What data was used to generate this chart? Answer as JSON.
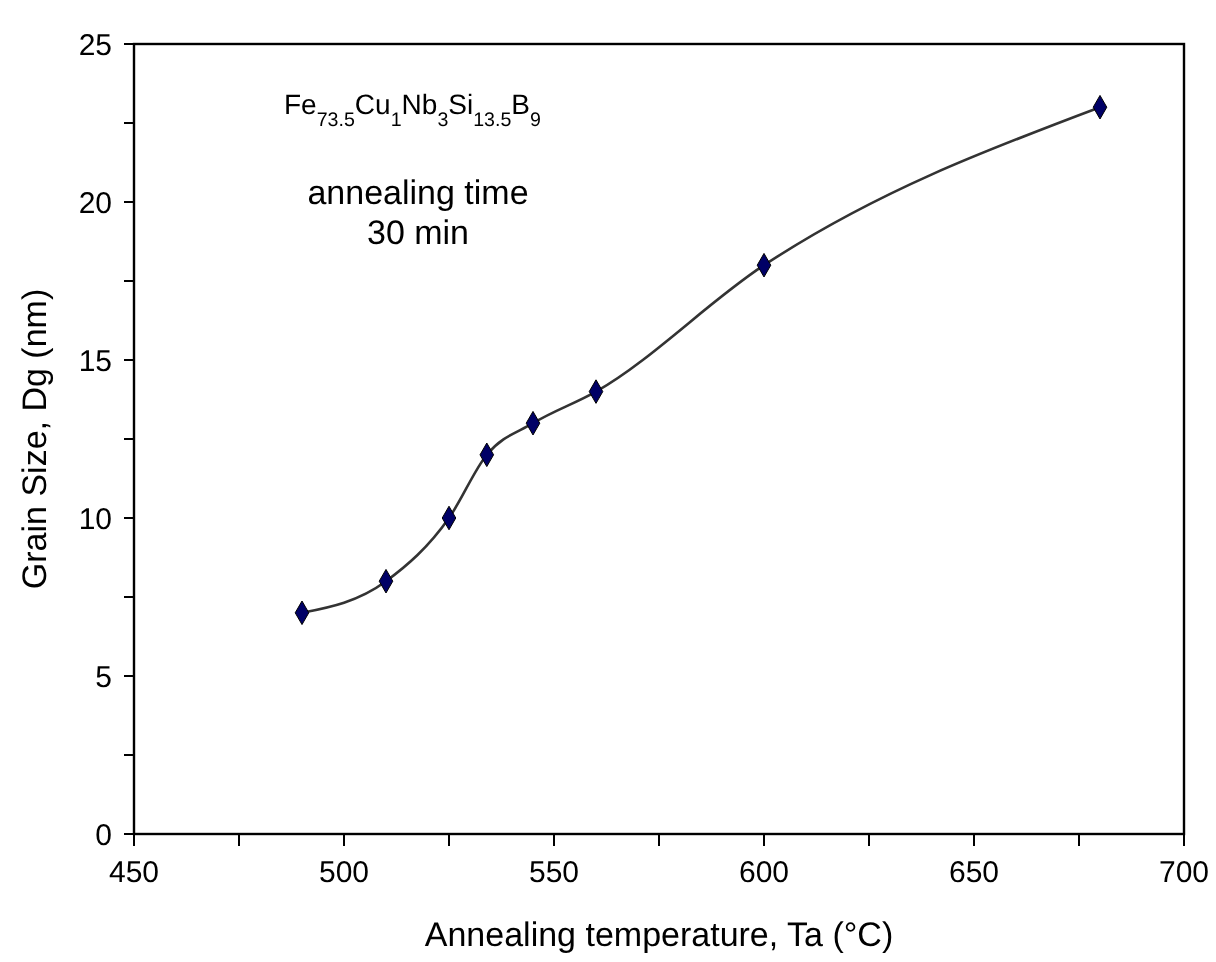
{
  "chart_data": {
    "type": "line",
    "xlabel": "Annealing temperature, Ta (°C)",
    "ylabel": "Grain Size, Dg (nm)",
    "annotations": [
      "Fe$_{73.5}$Cu$_{1}$Nb$_{3}$Si$_{13.5}$B$_{9}$",
      "annealing time\n30 min"
    ],
    "x": [
      490,
      510,
      525,
      534,
      545,
      560,
      600,
      680
    ],
    "series": [
      {
        "color": "#000066",
        "values": [
          7,
          8,
          10,
          12,
          13,
          14,
          18,
          23
        ]
      }
    ],
    "marker": "diamond",
    "line_style": "solid",
    "xlim": [
      450,
      700
    ],
    "xticks": [
      450,
      {
        "value": 475,
        "label": null
      },
      500,
      {
        "value": 525,
        "label": null
      },
      550,
      {
        "value": 575,
        "label": null
      },
      600,
      {
        "value": 625,
        "label": null
      },
      650,
      {
        "value": 675,
        "label": null
      },
      700
    ],
    "ylim": [
      0,
      25
    ],
    "yticks": [
      0,
      {
        "value": 2.5,
        "label": null
      },
      5,
      {
        "value": 7.5,
        "label": null
      },
      10,
      {
        "value": 12.5,
        "label": null
      },
      15,
      {
        "value": 17.5,
        "label": null
      },
      20,
      {
        "value": 22.5,
        "label": null
      },
      25
    ]
  }
}
